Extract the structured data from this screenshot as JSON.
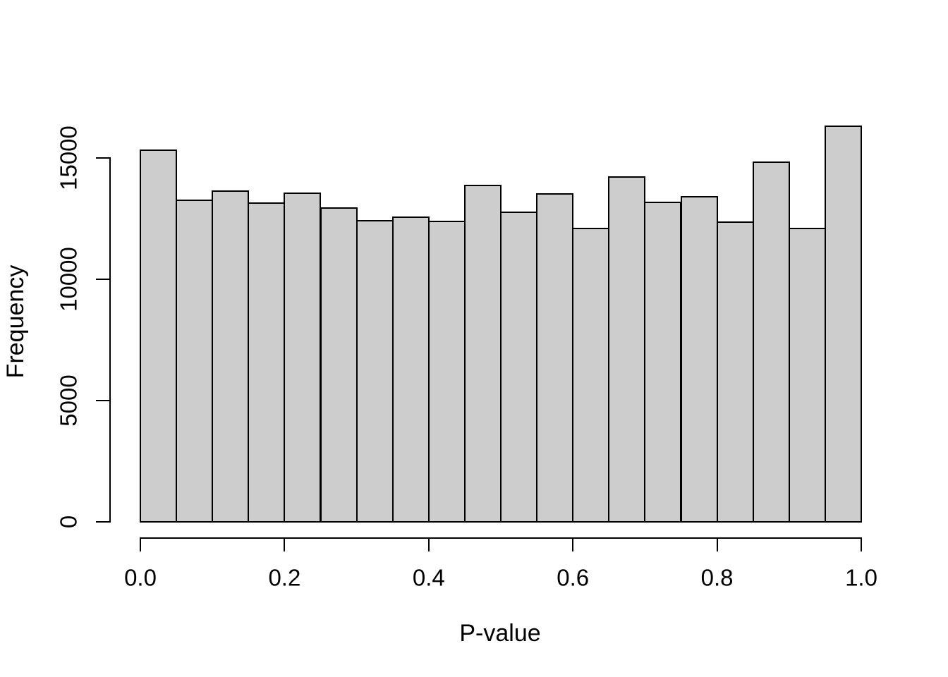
{
  "chart_data": {
    "type": "bar",
    "subtype": "histogram",
    "title": "",
    "xlabel": "P-value",
    "ylabel": "Frequency",
    "xlim": [
      0.0,
      1.0
    ],
    "ylim": [
      0,
      15000
    ],
    "grid": false,
    "legend": null,
    "bin_width": 0.05,
    "categories": [
      "0.00-0.05",
      "0.05-0.10",
      "0.10-0.15",
      "0.15-0.20",
      "0.20-0.25",
      "0.25-0.30",
      "0.30-0.35",
      "0.35-0.40",
      "0.40-0.45",
      "0.45-0.50",
      "0.50-0.55",
      "0.55-0.60",
      "0.60-0.65",
      "0.65-0.70",
      "0.70-0.75",
      "0.75-0.80",
      "0.80-0.85",
      "0.85-0.90",
      "0.90-0.95",
      "0.95-1.00"
    ],
    "values": [
      15330,
      13260,
      13630,
      13130,
      13550,
      12950,
      12400,
      12560,
      12380,
      13880,
      12760,
      13520,
      12080,
      14220,
      13170,
      13390,
      12350,
      14830,
      12090,
      16300
    ],
    "x_ticks": [
      {
        "value": 0.0,
        "label": "0.0"
      },
      {
        "value": 0.2,
        "label": "0.2"
      },
      {
        "value": 0.4,
        "label": "0.4"
      },
      {
        "value": 0.6,
        "label": "0.6"
      },
      {
        "value": 0.8,
        "label": "0.8"
      },
      {
        "value": 1.0,
        "label": "1.0"
      }
    ],
    "y_ticks": [
      {
        "value": 0,
        "label": "0"
      },
      {
        "value": 5000,
        "label": "5000"
      },
      {
        "value": 10000,
        "label": "10000"
      },
      {
        "value": 15000,
        "label": "15000"
      }
    ],
    "colors": {
      "bar_fill": "#CDCDCD",
      "bar_border": "#000000",
      "axis": "#000000",
      "text": "#000000",
      "background": "#FFFFFF"
    }
  }
}
